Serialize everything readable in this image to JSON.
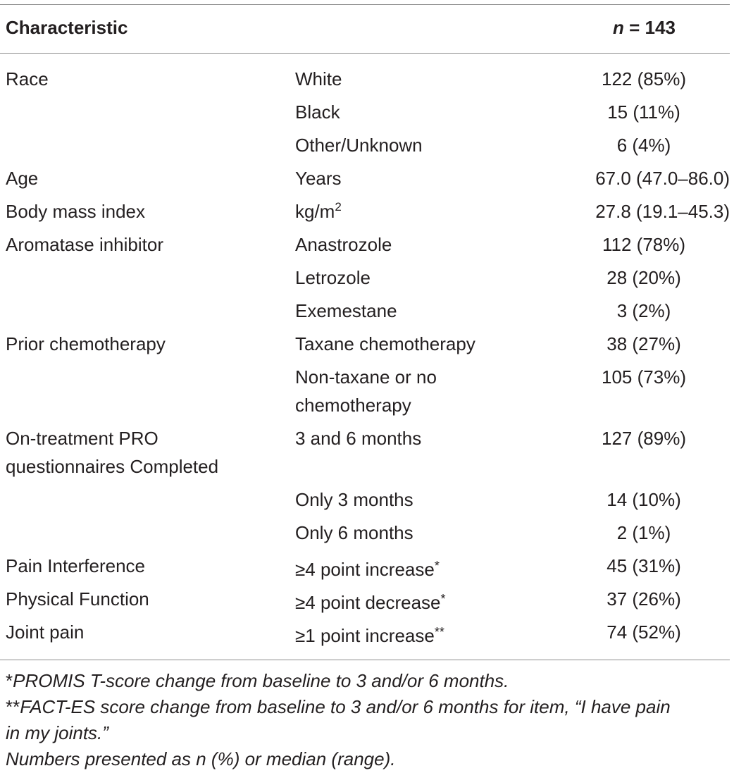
{
  "header": {
    "characteristic": "Characteristic",
    "n_label": "n",
    "n_value": "= 143"
  },
  "rows": [
    {
      "c1": "Race",
      "c2": "White",
      "c3": "122 (85%)"
    },
    {
      "c1": "",
      "c2": "Black",
      "c3": "15 (11%)"
    },
    {
      "c1": "",
      "c2": "Other/Unknown",
      "c3": "6 (4%)"
    },
    {
      "c1": "Age",
      "c2": "Years",
      "c3": "67.0 (47.0–86.0)"
    },
    {
      "c1": "Body mass index",
      "c2": "kg/m",
      "c2_sup": "2",
      "c3": "27.8 (19.1–45.3)"
    },
    {
      "c1": "Aromatase inhibitor",
      "c2": "Anastrozole",
      "c3": "112 (78%)"
    },
    {
      "c1": "",
      "c2": "Letrozole",
      "c3": "28 (20%)"
    },
    {
      "c1": "",
      "c2": "Exemestane",
      "c3": "3 (2%)"
    },
    {
      "c1": "Prior chemotherapy",
      "c2": "Taxane chemotherapy",
      "c3": "38 (27%)"
    },
    {
      "c1": "",
      "c2_line1": "Non-taxane or no",
      "c2_line2": "chemotherapy",
      "c3": "105 (73%)"
    },
    {
      "c1_line1": "On-treatment PRO",
      "c1_line2": "questionnaires Completed",
      "c2": "3 and 6 months",
      "c3": "127 (89%)"
    },
    {
      "c1": "",
      "c2": "Only 3 months",
      "c3": "14 (10%)"
    },
    {
      "c1": "",
      "c2": "Only 6 months",
      "c3": "2 (1%)"
    },
    {
      "c1": "Pain Interference",
      "c2": "≥4 point increase",
      "c2_mark": "*",
      "c3": "45 (31%)"
    },
    {
      "c1": "Physical Function",
      "c2": "≥4 point decrease",
      "c2_mark": "*",
      "c3": "37 (26%)"
    },
    {
      "c1": "Joint pain",
      "c2": "≥1 point increase",
      "c2_mark": "**",
      "c3": "74 (52%)"
    }
  ],
  "notes": {
    "n1_mark": "*",
    "n1": "PROMIS T-score change from baseline to 3 and/or 6 months.",
    "n2_mark": "**",
    "n2_line1": "FACT-ES score change from baseline to 3 and/or 6 months for item, “I have pain",
    "n2_line2": "in my joints.”",
    "n3": "Numbers presented as n (%) or median (range)."
  }
}
